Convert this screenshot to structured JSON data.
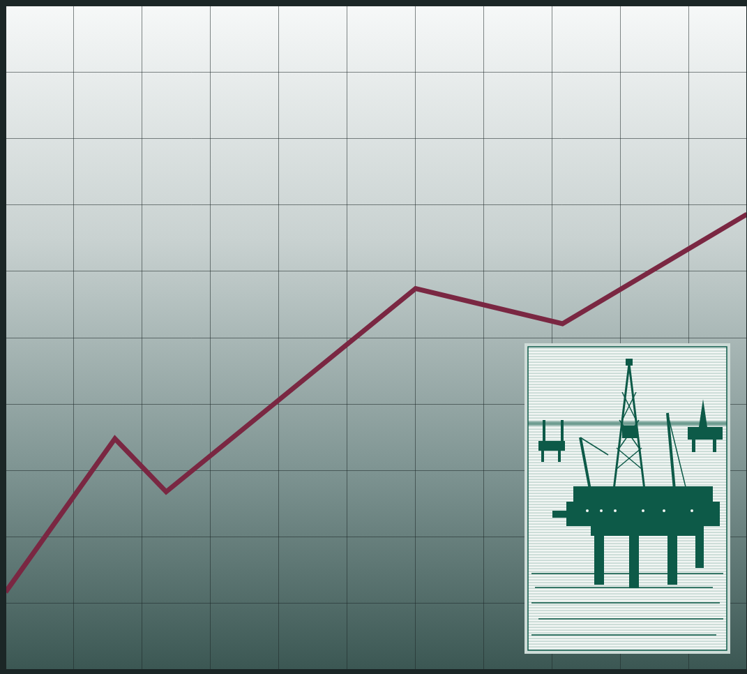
{
  "chart_data": {
    "type": "line",
    "x": [
      0,
      1.6,
      2.35,
      6.0,
      8.15,
      10.85
    ],
    "values": [
      1.17,
      3.48,
      2.68,
      5.74,
      5.21,
      6.86
    ],
    "color": "#7a2742",
    "xlim": [
      0,
      10.85
    ],
    "xticks": [
      0,
      1,
      2,
      3,
      4,
      5,
      6,
      7,
      8,
      9,
      10
    ],
    "ylim": [
      0,
      10
    ],
    "yticks": [
      0,
      1,
      2,
      3,
      4,
      5,
      6,
      7,
      8,
      9,
      10
    ],
    "grid": true,
    "tick_labels": false
  }
}
